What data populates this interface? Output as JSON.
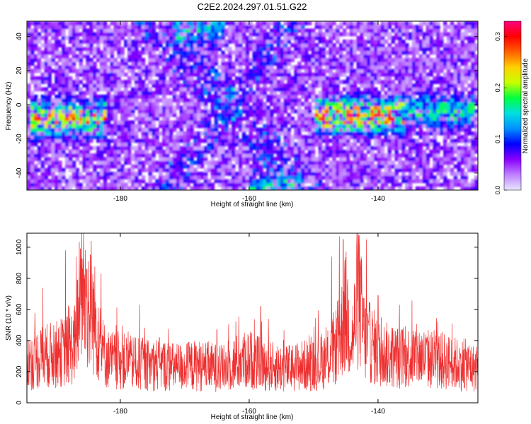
{
  "figure_title": "C2E2.2024.297.01.51.G22",
  "colors": {
    "snr_line": "#ee3030",
    "colorbar": [
      "#e8e8ff",
      "#c080ff",
      "#8a00ff",
      "#0000ff",
      "#0090ff",
      "#00e0e0",
      "#00ff40",
      "#c8ff00",
      "#ffd000",
      "#ff6000",
      "#ff0000",
      "#ff0080"
    ]
  },
  "chart_data": [
    {
      "type": "heatmap",
      "title": "C2E2.2024.297.01.51.G22",
      "xlabel": "Height of straight line (km)",
      "ylabel": "Frequency (Hz)",
      "xlim": [
        -194.5,
        -124.5
      ],
      "ylim": [
        -50,
        49
      ],
      "xticks": [
        -180,
        -160,
        -140
      ],
      "yticks": [
        -40,
        -20,
        0,
        20,
        40
      ],
      "colorbar": {
        "label": "Normalized spectral amplitude",
        "range": [
          0.0,
          0.33
        ],
        "ticks": [
          "0.0",
          "0.1",
          "0.2",
          "0.3"
        ],
        "tick_values": [
          0.0,
          0.1,
          0.2,
          0.3
        ]
      },
      "features": [
        {
          "x": [
            -194,
            -182
          ],
          "y_center": -8,
          "peak": 0.27
        },
        {
          "x": [
            -172,
            -164
          ],
          "y_center": 45,
          "peak": 0.12
        },
        {
          "x": [
            -160,
            -152
          ],
          "y_center": -48,
          "peak": 0.12
        },
        {
          "x": [
            -150,
            -136
          ],
          "y_center": -6,
          "peak": 0.32
        },
        {
          "x": [
            -136,
            -125
          ],
          "y_center": -4,
          "peak": 0.16
        }
      ],
      "grid": false
    },
    {
      "type": "line",
      "xlabel": "Height of straight line (km)",
      "ylabel": "SNR (10 * v/v)",
      "xlim": [
        -194.5,
        -124.5
      ],
      "ylim": [
        0,
        1090
      ],
      "xticks": [
        -180,
        -160,
        -140
      ],
      "yticks": [
        0,
        200,
        400,
        600,
        800,
        1000
      ],
      "series": [
        {
          "x": [
            -194,
            -192,
            -190,
            -188,
            -187,
            -186,
            -185,
            -184,
            -183,
            -182,
            -180,
            -178,
            -176,
            -174,
            -172,
            -170,
            -168,
            -166,
            -164,
            -162,
            -160,
            -158,
            -156,
            -154,
            -152,
            -150,
            -148,
            -146,
            -145,
            -144,
            -143,
            -142,
            -141,
            -140,
            -138,
            -136,
            -134,
            -132,
            -130,
            -128,
            -126,
            -125
          ],
          "values": [
            260,
            300,
            310,
            340,
            380,
            760,
            620,
            540,
            350,
            280,
            270,
            250,
            240,
            250,
            230,
            230,
            240,
            230,
            220,
            260,
            280,
            240,
            230,
            220,
            240,
            240,
            270,
            400,
            590,
            400,
            690,
            400,
            380,
            320,
            300,
            290,
            300,
            280,
            270,
            250,
            240,
            220
          ],
          "peaks": [
            {
              "x": -184.5,
              "value": 1040
            },
            {
              "x": -186.2,
              "value": 990
            },
            {
              "x": -188.5,
              "value": 980
            },
            {
              "x": -192.0,
              "value": 740
            },
            {
              "x": -183.0,
              "value": 830
            },
            {
              "x": -146.0,
              "value": 1070
            },
            {
              "x": -145.4,
              "value": 1050
            },
            {
              "x": -143.0,
              "value": 1080
            },
            {
              "x": -141.8,
              "value": 1050
            },
            {
              "x": -140.0,
              "value": 690
            },
            {
              "x": -147.2,
              "value": 940
            },
            {
              "x": -158.2,
              "value": 620
            },
            {
              "x": -157.0,
              "value": 540
            },
            {
              "x": -177.0,
              "value": 630
            },
            {
              "x": -165.0,
              "value": 470
            },
            {
              "x": -128.5,
              "value": 510
            }
          ]
        }
      ],
      "grid": false
    }
  ]
}
